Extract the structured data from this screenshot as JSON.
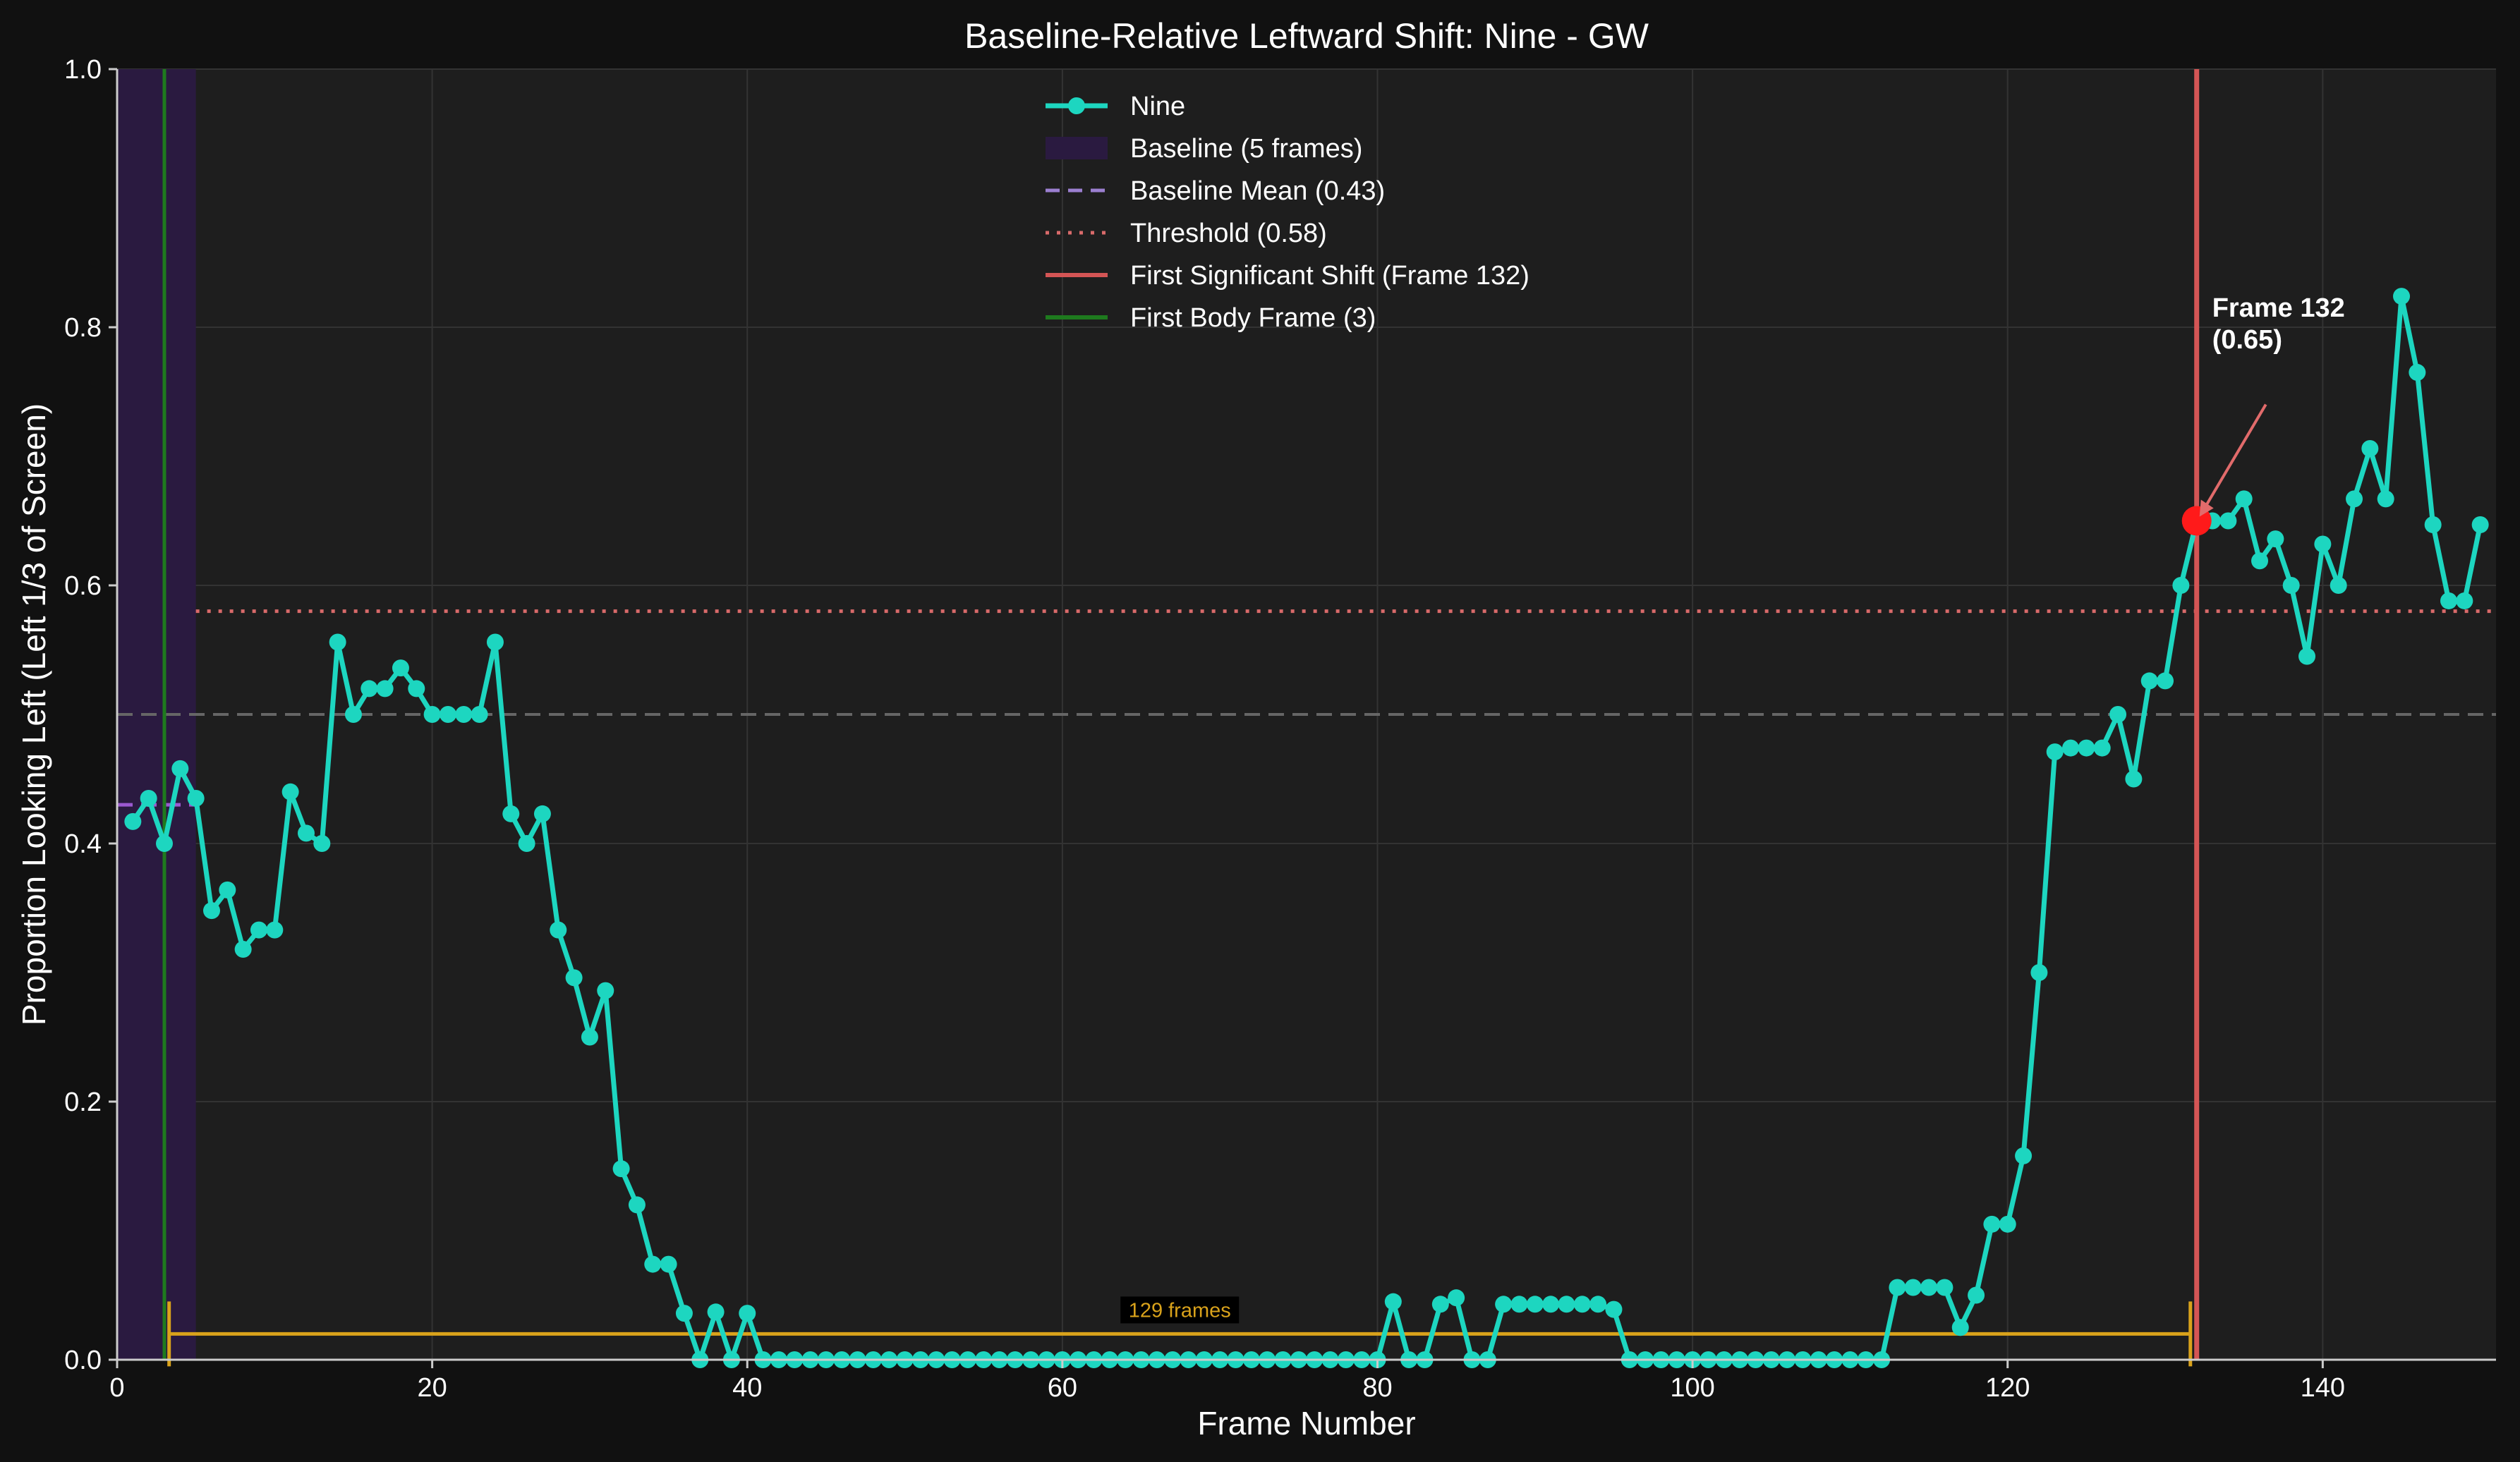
{
  "chart_data": {
    "type": "line",
    "title": "Baseline-Relative Leftward Shift: Nine - GW",
    "xlabel": "Frame Number",
    "ylabel": "Proportion Looking Left (Left 1/3 of Screen)",
    "xlim": [
      0,
      151
    ],
    "ylim": [
      0,
      1.0
    ],
    "xticks": [
      "0",
      "20",
      "40",
      "60",
      "80",
      "100",
      "120",
      "140"
    ],
    "xtick_values": [
      0,
      20,
      40,
      60,
      80,
      100,
      120,
      140
    ],
    "yticks": [
      "0.0",
      "0.2",
      "0.4",
      "0.6",
      "0.8",
      "1.0"
    ],
    "ytick_values": [
      0,
      0.2,
      0.4,
      0.6,
      0.8,
      1.0
    ],
    "grid": true,
    "legend_position": "top-center",
    "series": [
      {
        "name": "Nine",
        "color": "#1dd6c0",
        "x": [
          1,
          2,
          3,
          4,
          5,
          6,
          7,
          8,
          9,
          10,
          11,
          12,
          13,
          14,
          15,
          16,
          17,
          18,
          19,
          20,
          21,
          22,
          23,
          24,
          25,
          26,
          27,
          28,
          29,
          30,
          31,
          32,
          33,
          34,
          35,
          36,
          37,
          38,
          39,
          40,
          41,
          42,
          43,
          44,
          45,
          46,
          47,
          48,
          49,
          50,
          51,
          52,
          53,
          54,
          55,
          56,
          57,
          58,
          59,
          60,
          61,
          62,
          63,
          64,
          65,
          66,
          67,
          68,
          69,
          70,
          71,
          72,
          73,
          74,
          75,
          76,
          77,
          78,
          79,
          80,
          81,
          82,
          83,
          84,
          85,
          86,
          87,
          88,
          89,
          90,
          91,
          92,
          93,
          94,
          95,
          96,
          97,
          98,
          99,
          100,
          101,
          102,
          103,
          104,
          105,
          106,
          107,
          108,
          109,
          110,
          111,
          112,
          113,
          114,
          115,
          116,
          117,
          118,
          119,
          120,
          121,
          122,
          123,
          124,
          125,
          126,
          127,
          128,
          129,
          130,
          131,
          132,
          133,
          134,
          135,
          136,
          137,
          138,
          139,
          140,
          141,
          142,
          143,
          144,
          145,
          146,
          147,
          148,
          149,
          150
        ],
        "y": [
          0.417,
          0.435,
          0.4,
          0.458,
          0.435,
          0.348,
          0.364,
          0.318,
          0.333,
          0.333,
          0.44,
          0.408,
          0.4,
          0.556,
          0.5,
          0.52,
          0.52,
          0.536,
          0.52,
          0.5,
          0.5,
          0.5,
          0.5,
          0.556,
          0.423,
          0.4,
          0.423,
          0.333,
          0.296,
          0.25,
          0.286,
          0.148,
          0.12,
          0.074,
          0.074,
          0.036,
          0,
          0.037,
          0,
          0.036,
          0,
          0,
          0,
          0,
          0,
          0,
          0,
          0,
          0,
          0,
          0,
          0,
          0,
          0,
          0,
          0,
          0,
          0,
          0,
          0,
          0,
          0,
          0,
          0,
          0,
          0,
          0,
          0,
          0,
          0,
          0,
          0,
          0,
          0,
          0,
          0,
          0,
          0,
          0,
          0,
          0.045,
          0,
          0,
          0.043,
          0.048,
          0,
          0,
          0.043,
          0.043,
          0.043,
          0.043,
          0.043,
          0.043,
          0.043,
          0.039,
          0,
          0,
          0,
          0,
          0,
          0,
          0,
          0,
          0,
          0,
          0,
          0,
          0,
          0,
          0,
          0,
          0,
          0.056,
          0.056,
          0.056,
          0.056,
          0.025,
          0.05,
          0.105,
          0.105,
          0.158,
          0.3,
          0.471,
          0.474,
          0.474,
          0.474,
          0.5,
          0.45,
          0.526,
          0.526,
          0.6,
          0.65,
          0.65,
          0.65,
          0.667,
          0.619,
          0.636,
          0.6,
          0.545,
          0.632,
          0.6,
          0.667,
          0.706,
          0.667,
          0.824,
          0.765,
          0.647,
          0.588,
          0.588,
          0.647
        ]
      }
    ],
    "baseline_region": {
      "x_start": 0,
      "x_end": 5,
      "color": "#2a1a40"
    },
    "baseline_mean": {
      "value": 0.43,
      "color": "#9b59d0"
    },
    "reference_line": {
      "value": 0.5,
      "color": "#666666"
    },
    "threshold": {
      "value": 0.58,
      "start_x": 5,
      "color": "#d96a6a"
    },
    "first_shift": {
      "frame": 132,
      "value": 0.65,
      "color": "#d45555",
      "marker_color": "#ff1a1a"
    },
    "first_body_frame": {
      "frame": 3,
      "color": "#1e7a1e"
    },
    "annotation": {
      "line1": "Frame 132",
      "line2": "(0.65)",
      "arrow_color": "#e26b6b"
    },
    "span": {
      "x_start": 3.3,
      "x_end": 131.6,
      "y": 0.02,
      "label": "129 frames",
      "color": "#d9a21b"
    },
    "legend": [
      {
        "label": "Nine",
        "kind": "line-marker",
        "color": "#1dd6c0"
      },
      {
        "label": "Baseline (5 frames)",
        "kind": "patch",
        "color": "#2a1a40"
      },
      {
        "label": "Baseline Mean (0.43)",
        "kind": "dashed",
        "color": "#9b7fd0"
      },
      {
        "label": "Threshold (0.58)",
        "kind": "dotted",
        "color": "#d96a6a"
      },
      {
        "label": "First Significant Shift (Frame 132)",
        "kind": "solid",
        "color": "#d45555"
      },
      {
        "label": "First Body Frame (3)",
        "kind": "solid",
        "color": "#1e7a1e"
      }
    ],
    "colors": {
      "figure_bg": "#111111",
      "axes_bg": "#1e1e1e",
      "grid": "#333333",
      "text": "#ffffff",
      "axis": "#cccccc"
    }
  }
}
